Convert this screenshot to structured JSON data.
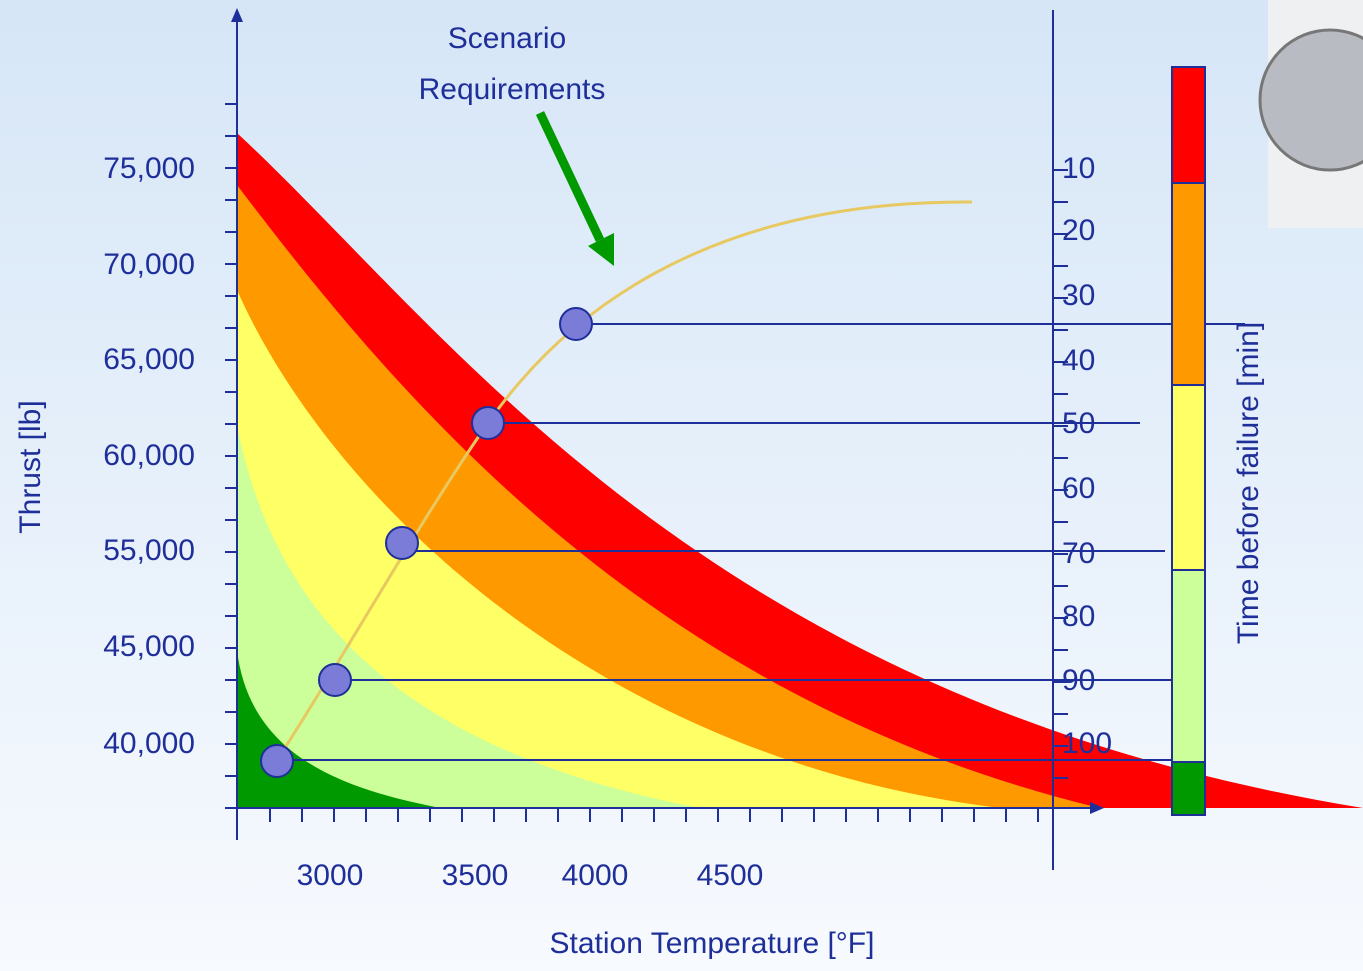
{
  "annotation": [
    "Scenario",
    "Requirements"
  ],
  "y_axis": {
    "label": "Thrust [lb]",
    "ticks": [
      "75,000",
      "70,000",
      "65,000",
      "60,000",
      "55,000",
      "45,000",
      "40,000"
    ]
  },
  "x_axis": {
    "label": "Station Temperature [°F]",
    "ticks": [
      "3000",
      "3500",
      "4000",
      "4500"
    ]
  },
  "right_axis": {
    "label": "Time before failure  [min]",
    "ticks": [
      "10",
      "20",
      "30",
      "40",
      "50",
      "60",
      "70",
      "80",
      "90",
      "100"
    ]
  }
}
